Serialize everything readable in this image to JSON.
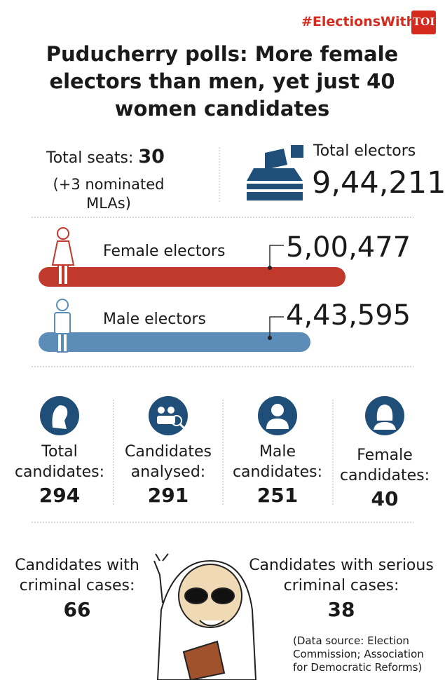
{
  "header": {
    "hashtag": "#ElectionsWith",
    "logo": "TOI",
    "title": "Puducherry polls: More female electors than men, yet just 40 women candidates"
  },
  "seats": {
    "label": "Total seats:",
    "value": "30",
    "note": "(+3 nominated MLAs)"
  },
  "electors": {
    "label": "Total electors",
    "value": "9,44,211"
  },
  "gender": {
    "female": {
      "label": "Female electors",
      "value": "5,00,477"
    },
    "male": {
      "label": "Male electors",
      "value": "4,43,595"
    }
  },
  "stats": [
    {
      "label": "Total candidates:",
      "value": "294"
    },
    {
      "label": "Candidates analysed:",
      "value": "291"
    },
    {
      "label": "Male candidates:",
      "value": "251"
    },
    {
      "label": "Female candidates:",
      "value": "40"
    }
  ],
  "criminal": {
    "label": "Candidates with criminal cases:",
    "value": "66"
  },
  "serious": {
    "label": "Candidates with serious criminal cases:",
    "value": "38"
  },
  "footer": {
    "source": "(Data source: Election Commission; Association for Democratic Reforms)"
  }
}
